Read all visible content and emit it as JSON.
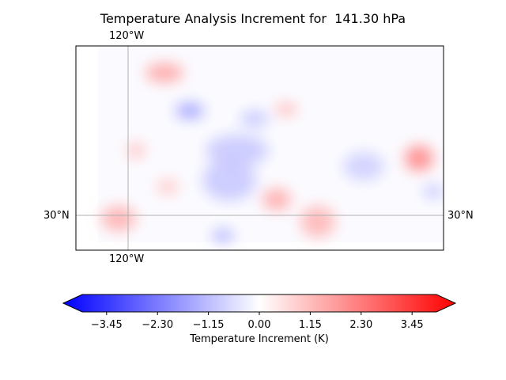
{
  "chart_data": {
    "type": "heatmap",
    "title": "Temperature Analysis Increment for  141.30 hPa",
    "gridlines": {
      "lon_label": "120°W",
      "lat_label": "30°N"
    },
    "colorbar": {
      "label": "Temperature Increment (K)",
      "ticks": [
        "−3.45",
        "−2.30",
        "−1.15",
        "0.00",
        "1.15",
        "2.30",
        "3.45"
      ],
      "tick_values": [
        -3.45,
        -2.3,
        -1.15,
        0.0,
        1.15,
        2.3,
        3.45
      ],
      "vmin": -4.0,
      "vmax": 4.0,
      "extend": "both",
      "cmap": "bwr",
      "colors": {
        "min": "#0000ff",
        "mid": "#ffffff",
        "max": "#ff0000"
      }
    },
    "field_features": [
      {
        "sign": "positive",
        "value": 1.5
      },
      {
        "sign": "negative",
        "value": -1.6
      },
      {
        "sign": "negative",
        "value": -1.0
      },
      {
        "sign": "positive",
        "value": 1.2
      },
      {
        "sign": "positive",
        "value": 1.0
      },
      {
        "sign": "negative",
        "value": -0.9
      },
      {
        "sign": "positive",
        "value": 2.0
      },
      {
        "sign": "negative",
        "value": -1.1
      },
      {
        "sign": "positive",
        "value": 1.4
      },
      {
        "sign": "positive",
        "value": 1.2
      },
      {
        "sign": "negative",
        "value": -1.4
      },
      {
        "sign": "positive",
        "value": 1.3
      },
      {
        "sign": "negative",
        "value": -0.9
      },
      {
        "sign": "negative",
        "value": -0.8
      },
      {
        "sign": "positive",
        "value": 0.9
      }
    ]
  }
}
